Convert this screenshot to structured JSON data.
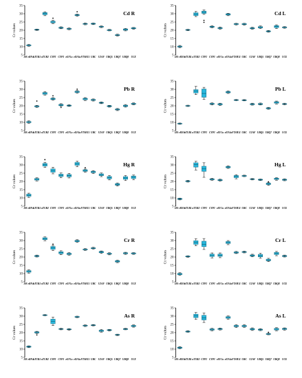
{
  "genes": [
    "18S rRNA",
    "αTUB1",
    "αTUB2",
    "CYP2",
    "CYP3",
    "eEF1a",
    "eEF4a",
    "FTSH11",
    "UBC",
    "U2AF",
    "UBQ5",
    "UBQ7",
    "UBQ8",
    "UCE"
  ],
  "colors": {
    "box": "#29b8dd",
    "box_edge": "#1b6f86",
    "axis": "#000000"
  },
  "chart_data": [
    {
      "id": "cd-r",
      "type": "box",
      "title": "Cd R",
      "ylabel": "Ct values",
      "ylim": [
        5,
        35
      ],
      "yticks": [
        5,
        10,
        15,
        20,
        25,
        30,
        35
      ],
      "grid": false,
      "boxes": [
        [
          10.3,
          10.6,
          10.8,
          11.1,
          11.4
        ],
        [
          19.9,
          20.1,
          20.3,
          20.5,
          20.7
        ],
        [
          28.8,
          29.4,
          30.1,
          30.7,
          31.2
        ],
        [
          24,
          24.5,
          25,
          25.5,
          26
        ],
        [
          20.9,
          21.2,
          21.5,
          21.8,
          22.1
        ],
        [
          20.3,
          20.6,
          20.9,
          21.1,
          21.4
        ],
        [
          28.5,
          28.9,
          29.2,
          29.5,
          29.8
        ],
        [
          23.3,
          23.6,
          23.9,
          24.1,
          24.4
        ],
        [
          23.4,
          23.7,
          23.9,
          24.2,
          24.4
        ],
        [
          21.6,
          21.9,
          22.1,
          22.4,
          22.6
        ],
        [
          19.6,
          19.8,
          20,
          20.3,
          20.5
        ],
        [
          16.5,
          16.8,
          17,
          17.3,
          17.6
        ],
        [
          19.6,
          20,
          20.4,
          20.8,
          21.1
        ],
        [
          20.6,
          20.9,
          21.2,
          21.5,
          21.7
        ]
      ],
      "outliers": [
        [
          3,
          27.3
        ],
        [
          6,
          31.2
        ]
      ]
    },
    {
      "id": "cd-l",
      "type": "box",
      "title": "Cd L",
      "ylabel": "Ct values",
      "ylim": [
        5,
        35
      ],
      "yticks": [
        5,
        10,
        15,
        20,
        25,
        30,
        35
      ],
      "grid": false,
      "boxes": [
        [
          9.4,
          9.8,
          10.1,
          10.4,
          10.8
        ],
        [
          19.7,
          20,
          20.2,
          20.4,
          20.6
        ],
        [
          28.3,
          28.9,
          29.8,
          30.6,
          31.4
        ],
        [
          29.6,
          30.2,
          30.9,
          31.6,
          32.3
        ],
        [
          21.5,
          21.8,
          22.1,
          22.4,
          22.7
        ],
        [
          20.6,
          21,
          21.3,
          21.6,
          22
        ],
        [
          28.8,
          29.2,
          29.6,
          30,
          30.3
        ],
        [
          23.2,
          23.5,
          23.8,
          24,
          24.2
        ],
        [
          23.1,
          23.4,
          23.7,
          24,
          24.2
        ],
        [
          20.6,
          20.9,
          21.2,
          21.5,
          21.8
        ],
        [
          21,
          21.4,
          21.8,
          22.2,
          22.6
        ],
        [
          18.8,
          19.1,
          19.4,
          19.6,
          19.9
        ],
        [
          21,
          21.6,
          22.2,
          22.8,
          23.3
        ],
        [
          21.2,
          21.5,
          21.7,
          22,
          22.2
        ]
      ],
      "outliers": [
        [
          3,
          26
        ],
        [
          3,
          24.8
        ]
      ]
    },
    {
      "id": "pb-r",
      "type": "box",
      "title": "Pb R",
      "ylabel": "Ct values",
      "ylim": [
        5,
        35
      ],
      "yticks": [
        5,
        10,
        15,
        20,
        25,
        30,
        35
      ],
      "grid": false,
      "boxes": [
        [
          9.4,
          9.8,
          10.1,
          10.5,
          10.9
        ],
        [
          19,
          19.4,
          19.7,
          20,
          20.3
        ],
        [
          26.5,
          27,
          27.6,
          28.1,
          28.6
        ],
        [
          23.4,
          23.8,
          24.2,
          24.6,
          25
        ],
        [
          19.7,
          20.1,
          20.5,
          20.9,
          21.3
        ],
        [
          19.7,
          19.9,
          20.2,
          20.4,
          20.7
        ],
        [
          27.7,
          28.1,
          28.5,
          28.9,
          29.3
        ],
        [
          23.2,
          23.7,
          24.2,
          24.6,
          25
        ],
        [
          22.9,
          23.3,
          23.6,
          23.9,
          24.2
        ],
        [
          21.3,
          21.6,
          21.9,
          22.1,
          22.4
        ],
        [
          19.2,
          19.5,
          19.8,
          20.1,
          20.3
        ],
        [
          17.1,
          17.5,
          17.8,
          18.1,
          18.4
        ],
        [
          19.2,
          19.6,
          20,
          20.4,
          20.8
        ],
        [
          20.6,
          20.9,
          21.2,
          21.5,
          21.8
        ]
      ],
      "outliers": [
        [
          1,
          22.9
        ],
        [
          3,
          26.1
        ],
        [
          4,
          19
        ],
        [
          6,
          30.1
        ]
      ]
    },
    {
      "id": "pb-l",
      "type": "box",
      "title": "Pb L",
      "ylabel": "Ct values",
      "ylim": [
        5,
        35
      ],
      "yticks": [
        5,
        10,
        15,
        20,
        25,
        30,
        35
      ],
      "grid": false,
      "boxes": [
        [
          8.8,
          9,
          9.2,
          9.4,
          9.6
        ],
        [
          19.6,
          19.8,
          20,
          20.2,
          20.4
        ],
        [
          26.8,
          27.8,
          28.9,
          29.8,
          31.8
        ],
        [
          23.9,
          25.2,
          27.5,
          30.2,
          31.2
        ],
        [
          20.5,
          20.9,
          21.2,
          21.5,
          21.8
        ],
        [
          20.2,
          20.6,
          20.9,
          21.3,
          21.6
        ],
        [
          27.5,
          27.9,
          28.3,
          28.7,
          29.1
        ],
        [
          23.1,
          23.3,
          23.5,
          23.7,
          23.9
        ],
        [
          23,
          23.2,
          23.4,
          23.6,
          23.8
        ],
        [
          20.4,
          20.7,
          21,
          21.3,
          21.6
        ],
        [
          20.5,
          20.8,
          21.1,
          21.4,
          21.7
        ],
        [
          17.9,
          18.2,
          18.5,
          18.8,
          19.1
        ],
        [
          21.1,
          21.6,
          22.1,
          22.5,
          22.9
        ],
        [
          20.6,
          20.9,
          21.1,
          21.3,
          21.6
        ]
      ],
      "outliers": []
    },
    {
      "id": "hg-r",
      "type": "box",
      "title": "Hg R",
      "ylabel": "Ct values",
      "ylim": [
        5,
        35
      ],
      "yticks": [
        5,
        10,
        15,
        20,
        25,
        30,
        35
      ],
      "grid": false,
      "boxes": [
        [
          10.3,
          11,
          11.6,
          12.3,
          12.9
        ],
        [
          20.3,
          20.8,
          21.3,
          21.8,
          22.2
        ],
        [
          28.5,
          29.3,
          30.1,
          30.9,
          31.6
        ],
        [
          24.6,
          25.6,
          26.6,
          27.6,
          28.6
        ],
        [
          22.2,
          23,
          23.7,
          24.4,
          25.1
        ],
        [
          22.1,
          22.8,
          23.5,
          24.2,
          24.9
        ],
        [
          28.9,
          29.8,
          30.7,
          31.5,
          32.3
        ],
        [
          25.6,
          26.1,
          26.6,
          27.1,
          27.5
        ],
        [
          24.8,
          25.3,
          25.8,
          26.2,
          26.6
        ],
        [
          22.9,
          23.5,
          24,
          24.6,
          25.1
        ],
        [
          20.9,
          21.6,
          22.3,
          23,
          23.6
        ],
        [
          17.2,
          17.7,
          18.2,
          18.7,
          19.1
        ],
        [
          20.5,
          21.3,
          22.1,
          22.9,
          23.6
        ],
        [
          21,
          21.8,
          22.6,
          23.3,
          23.9
        ]
      ],
      "outliers": [
        [
          2,
          33.2
        ],
        [
          7,
          28.3
        ]
      ]
    },
    {
      "id": "hg-l",
      "type": "box",
      "title": "Hg L",
      "ylabel": "Ct values",
      "ylim": [
        5,
        35
      ],
      "yticks": [
        5,
        10,
        15,
        20,
        25,
        30,
        35
      ],
      "grid": false,
      "boxes": [
        [
          8.8,
          9.1,
          9.4,
          9.7,
          9.9
        ],
        [
          19.6,
          19.9,
          20.2,
          20.4,
          20.7
        ],
        [
          26.9,
          28.7,
          30.3,
          31.3,
          32.2
        ],
        [
          22.5,
          26.1,
          27.6,
          29.2,
          31.3
        ],
        [
          20.7,
          21,
          21.3,
          21.6,
          21.9
        ],
        [
          20.2,
          20.5,
          20.8,
          21.1,
          21.4
        ],
        [
          27.9,
          28.3,
          28.7,
          29.1,
          29.5
        ],
        [
          21.6,
          22.3,
          23,
          23.6,
          24.1
        ],
        [
          22.9,
          23.1,
          23.4,
          23.6,
          23.8
        ],
        [
          20.9,
          21.2,
          21.4,
          21.6,
          21.8
        ],
        [
          20.5,
          20.8,
          21.1,
          21.3,
          21.5
        ],
        [
          17.6,
          18.1,
          18.6,
          19,
          19.4
        ],
        [
          20.7,
          21.2,
          21.6,
          22,
          22.3
        ],
        [
          20.4,
          20.7,
          21,
          21.3,
          21.6
        ]
      ],
      "outliers": [
        [
          11,
          19.8
        ]
      ]
    },
    {
      "id": "cr-r",
      "type": "box",
      "title": "Cr R",
      "ylabel": "Ct values",
      "ylim": [
        5,
        35
      ],
      "yticks": [
        5,
        10,
        15,
        20,
        25,
        30,
        35
      ],
      "grid": false,
      "boxes": [
        [
          10.2,
          10.8,
          11.3,
          11.8,
          12.2
        ],
        [
          20,
          20.3,
          20.6,
          20.9,
          21.2
        ],
        [
          29.9,
          30.5,
          31.1,
          31.7,
          32.2
        ],
        [
          23.9,
          24.7,
          25.6,
          26.4,
          27.1
        ],
        [
          21.4,
          22,
          22.6,
          23.2,
          23.8
        ],
        [
          21.1,
          21.5,
          21.9,
          22.3,
          22.7
        ],
        [
          28.9,
          29.3,
          29.7,
          30.1,
          30.5
        ],
        [
          24,
          24.3,
          24.6,
          24.8,
          25.1
        ],
        [
          24.8,
          25.1,
          25.4,
          25.6,
          25.9
        ],
        [
          22.2,
          22.6,
          23,
          23.4,
          23.7
        ],
        [
          21.3,
          21.7,
          22,
          22.3,
          22.6
        ],
        [
          16.6,
          17,
          17.4,
          17.8,
          18.1
        ],
        [
          21.6,
          22,
          22.3,
          22.6,
          22.9
        ],
        [
          21.6,
          21.9,
          22.2,
          22.5,
          22.7
        ]
      ],
      "outliers": [
        [
          3,
          27.8
        ]
      ]
    },
    {
      "id": "cr-l",
      "type": "box",
      "title": "Cr L",
      "ylabel": "Ct values",
      "ylim": [
        5,
        35
      ],
      "yticks": [
        5,
        10,
        15,
        20,
        25,
        30,
        35
      ],
      "grid": false,
      "boxes": [
        [
          8.9,
          9.3,
          9.7,
          10.1,
          10.5
        ],
        [
          19.9,
          20.1,
          20.3,
          20.6,
          20.8
        ],
        [
          26.8,
          27.7,
          28.8,
          29.9,
          31.1
        ],
        [
          24.6,
          26.3,
          27.8,
          29.6,
          31.2
        ],
        [
          19.5,
          20.3,
          21.1,
          21.8,
          22.5
        ],
        [
          19.6,
          20.4,
          21.1,
          21.8,
          22.5
        ],
        [
          27.5,
          28.2,
          28.8,
          29.4,
          30
        ],
        [
          22.1,
          22.4,
          22.8,
          23.1,
          23.4
        ],
        [
          22.5,
          22.8,
          23.1,
          23.3,
          23.6
        ],
        [
          20.1,
          20.5,
          20.9,
          21.3,
          21.7
        ],
        [
          19.3,
          20.1,
          20.8,
          21.6,
          22.3
        ],
        [
          17.2,
          17.7,
          18.2,
          18.7,
          19.2
        ],
        [
          20.8,
          21.5,
          22.2,
          22.8,
          23.4
        ],
        [
          20,
          20.3,
          20.6,
          20.9,
          21.2
        ]
      ],
      "outliers": []
    },
    {
      "id": "as-r",
      "type": "box",
      "title": "As R",
      "ylabel": "Ct values",
      "ylim": [
        5,
        35
      ],
      "yticks": [
        5,
        10,
        15,
        20,
        25,
        30,
        35
      ],
      "grid": false,
      "boxes": [
        [
          10.9,
          11.2,
          11.5,
          11.8,
          12
        ],
        [
          19.4,
          19.8,
          20.2,
          20.5,
          20.8
        ],
        [
          30.2,
          30.4,
          30.6,
          30.8,
          31
        ],
        [
          24.3,
          25.4,
          26.8,
          28.2,
          29.4
        ],
        [
          21.7,
          22,
          22.2,
          22.4,
          22.6
        ],
        [
          21.5,
          21.8,
          22,
          22.2,
          22.4
        ],
        [
          29.1,
          29.3,
          29.5,
          29.8,
          30
        ],
        [
          23.7,
          24,
          24.3,
          24.5,
          24.7
        ],
        [
          24.1,
          24.3,
          24.5,
          24.7,
          24.9
        ],
        [
          20.3,
          20.7,
          21.1,
          21.5,
          21.9
        ],
        [
          21,
          21.3,
          21.5,
          21.8,
          22
        ],
        [
          18.2,
          18.5,
          18.7,
          18.9,
          19.1
        ],
        [
          21.7,
          21.9,
          22.2,
          22.4,
          22.6
        ],
        [
          23.3,
          23.7,
          24.1,
          24.4,
          24.7
        ]
      ],
      "outliers": [
        [
          1,
          18.6
        ]
      ]
    },
    {
      "id": "as-l",
      "type": "box",
      "title": "As L",
      "ylabel": "Ct values",
      "ylim": [
        5,
        35
      ],
      "yticks": [
        5,
        10,
        15,
        20,
        25,
        30,
        35
      ],
      "grid": false,
      "boxes": [
        [
          10.2,
          10.5,
          10.9,
          11.2,
          11.5
        ],
        [
          20.2,
          20.4,
          20.7,
          20.9,
          21.2
        ],
        [
          28,
          29.1,
          30.1,
          31.2,
          32.2
        ],
        [
          26.2,
          27.7,
          28.9,
          30.5,
          31.9
        ],
        [
          21.1,
          21.5,
          21.9,
          22.3,
          22.6
        ],
        [
          21.6,
          21.9,
          22.2,
          22.5,
          22.8
        ],
        [
          28.1,
          28.7,
          29.2,
          29.7,
          30.1
        ],
        [
          23.1,
          23.6,
          24,
          24.4,
          24.8
        ],
        [
          23.2,
          23.6,
          24,
          24.4,
          24.8
        ],
        [
          21.3,
          21.7,
          22.1,
          22.5,
          22.9
        ],
        [
          21.2,
          21.5,
          21.8,
          22.1,
          22.4
        ],
        [
          18.7,
          18.9,
          19.2,
          19.4,
          19.6
        ],
        [
          21.1,
          21.6,
          22.1,
          22.6,
          23
        ],
        [
          21.5,
          21.9,
          22.3,
          22.6,
          22.9
        ]
      ],
      "outliers": [
        [
          11,
          20.2
        ]
      ]
    }
  ]
}
